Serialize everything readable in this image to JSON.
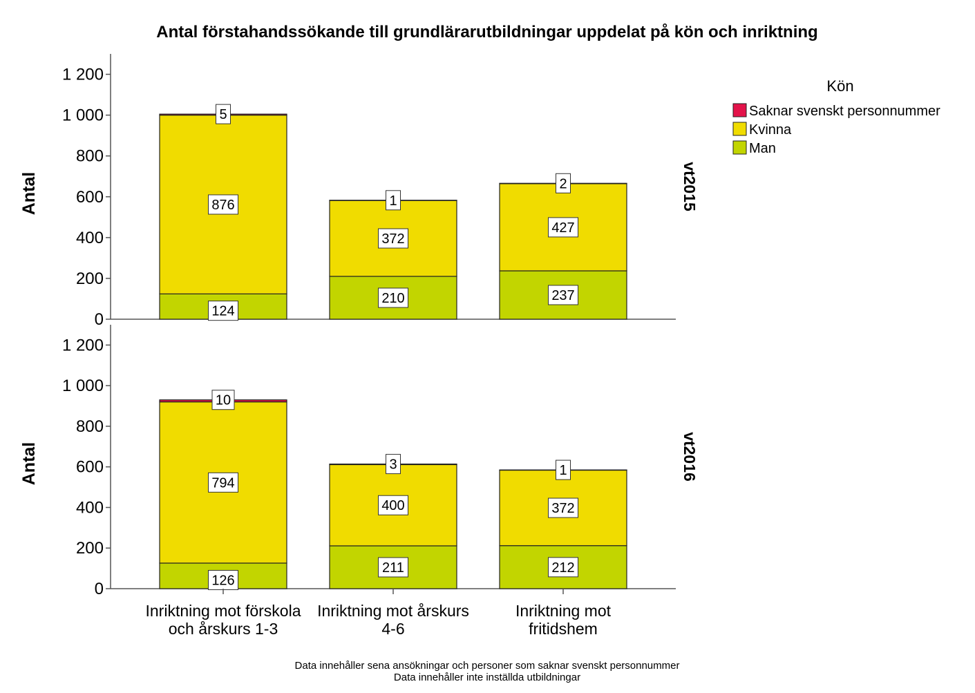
{
  "chart_data": {
    "type": "bar",
    "stacked": true,
    "title": "Antal förstahandssökande till grundlärarutbildningar uppdelat på kön och inriktning",
    "ylabel": "Antal",
    "ylim": [
      0,
      1300
    ],
    "yticks": [
      0,
      200,
      400,
      600,
      800,
      1000,
      1200
    ],
    "ytick_labels": [
      "0",
      "200",
      "400",
      "600",
      "800",
      "1 000",
      "1 200"
    ],
    "categories": [
      [
        "Inriktning mot förskola",
        "och årskurs 1-3"
      ],
      [
        "Inriktning mot årskurs",
        "4-6"
      ],
      [
        "Inriktning mot",
        "fritidshem"
      ]
    ],
    "legend": {
      "title": "Kön",
      "placement": "right",
      "items": [
        {
          "name": "Saknar svenskt personnummer",
          "color": "#e3134a"
        },
        {
          "name": "Kvinna",
          "color": "#f0dc00"
        },
        {
          "name": "Man",
          "color": "#c2d500"
        }
      ]
    },
    "panels": [
      {
        "label": "vt2015",
        "series": [
          {
            "name": "Man",
            "values": [
              124,
              210,
              237
            ]
          },
          {
            "name": "Kvinna",
            "values": [
              876,
              372,
              427
            ]
          },
          {
            "name": "Saknar svenskt personnummer",
            "values": [
              5,
              1,
              2
            ]
          }
        ]
      },
      {
        "label": "vt2016",
        "series": [
          {
            "name": "Man",
            "values": [
              126,
              211,
              212
            ]
          },
          {
            "name": "Kvinna",
            "values": [
              794,
              400,
              372
            ]
          },
          {
            "name": "Saknar svenskt personnummer",
            "values": [
              10,
              3,
              1
            ]
          }
        ]
      }
    ],
    "notes": [
      "Data innehåller sena ansökningar och personer som saknar svenskt personnummer",
      "Data innehåller inte inställda utbildningar"
    ],
    "grid": false
  }
}
